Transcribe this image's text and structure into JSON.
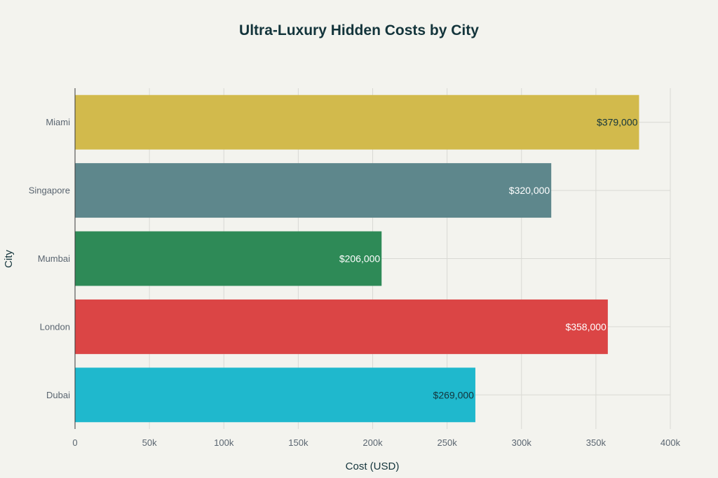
{
  "chart_data": {
    "type": "bar",
    "orientation": "horizontal",
    "title": "Ultra-Luxury Hidden Costs by City",
    "xlabel": "Cost (USD)",
    "ylabel": "City",
    "categories": [
      "Miami",
      "Singapore",
      "Mumbai",
      "London",
      "Dubai"
    ],
    "values": [
      379000,
      320000,
      206000,
      358000,
      269000
    ],
    "value_labels": [
      "$379,000",
      "$320,000",
      "$206,000",
      "$358,000",
      "$269,000"
    ],
    "colors": [
      "#d2ba4c",
      "#5e878c",
      "#2e8a57",
      "#db4545",
      "#1fb8cd"
    ],
    "label_colors": [
      "#13343b",
      "#ffffff",
      "#ffffff",
      "#ffffff",
      "#13343b"
    ],
    "xlim": [
      0,
      400000
    ],
    "xticks": [
      0,
      50000,
      100000,
      150000,
      200000,
      250000,
      300000,
      350000,
      400000
    ],
    "xtick_labels": [
      "0",
      "50k",
      "100k",
      "150k",
      "200k",
      "250k",
      "300k",
      "350k",
      "400k"
    ],
    "grid": true,
    "legend": "none",
    "background": "#f3f3ee"
  }
}
